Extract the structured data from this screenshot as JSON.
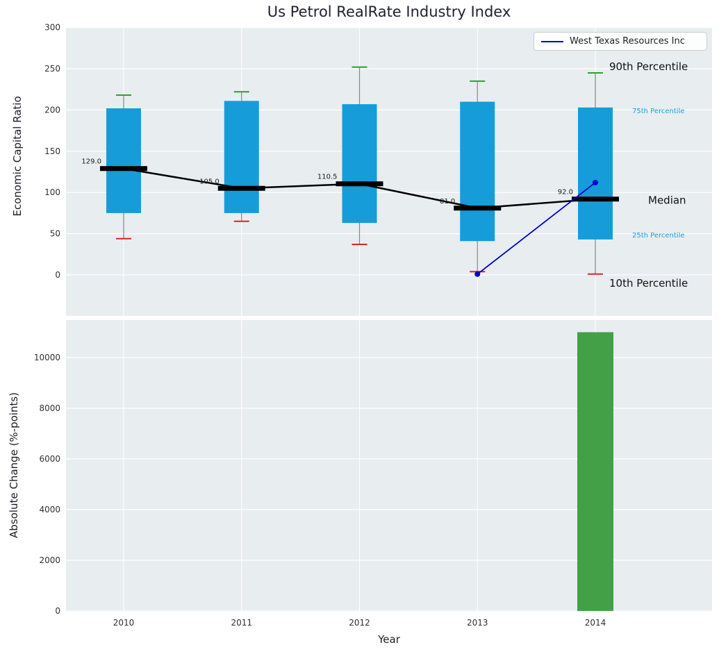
{
  "title": "Us Petrol RealRate Industry Index",
  "legend": {
    "label": "West Texas Resources Inc"
  },
  "colors": {
    "panel_bg": "#e8edf0",
    "grid": "#ffffff",
    "box_fill": "#169cd8",
    "whisker": "#888888",
    "cap_high": "#2ca02c",
    "cap_low": "#e02020",
    "median": "#000000",
    "median_trend": "#000000",
    "company_line": "#0000cc",
    "bar": "#43a047",
    "annotation_small": "#1a9ed8",
    "annotation_large": "#111111",
    "tick_text": "#303030",
    "median_label_text": "#1a1a1a"
  },
  "chart_data": [
    {
      "type": "boxplot+line",
      "title": "Us Petrol RealRate Industry Index",
      "xlabel": "Year",
      "ylabel": "Economic Capital Ratio",
      "categories": [
        "2010",
        "2011",
        "2012",
        "2013",
        "2014"
      ],
      "yticks": [
        0,
        50,
        100,
        150,
        200,
        250,
        300
      ],
      "ylim": [
        -50,
        300
      ],
      "grid": true,
      "legend_position": "upper right",
      "boxes": [
        {
          "year": "2010",
          "p10": 44,
          "p25": 75,
          "median": 129.0,
          "p75": 202,
          "p90": 218
        },
        {
          "year": "2011",
          "p10": 65,
          "p25": 75,
          "median": 105.0,
          "p75": 211,
          "p90": 222
        },
        {
          "year": "2012",
          "p10": 37,
          "p25": 63,
          "median": 110.5,
          "p75": 207,
          "p90": 252
        },
        {
          "year": "2013",
          "p10": 4,
          "p25": 41,
          "median": 81.0,
          "p75": 210,
          "p90": 235
        },
        {
          "year": "2014",
          "p10": 1,
          "p25": 43,
          "median": 92.0,
          "p75": 203,
          "p90": 245
        }
      ],
      "median_labels": [
        "129.0",
        "105.0",
        "110.5",
        "81.0",
        "92.0"
      ],
      "company_series": {
        "name": "West Texas Resources Inc",
        "x": [
          "2013",
          "2014"
        ],
        "values": [
          1.0,
          112.0
        ]
      },
      "percentile_annotations": [
        {
          "key": "p90",
          "label": "90th Percentile",
          "size": "large"
        },
        {
          "key": "p75",
          "label": "75th Percentile",
          "size": "small"
        },
        {
          "key": "median",
          "label": "Median",
          "size": "large"
        },
        {
          "key": "p25",
          "label": "25th Percentile",
          "size": "small"
        },
        {
          "key": "p10",
          "label": "10th Percentile",
          "size": "large"
        }
      ]
    },
    {
      "type": "bar",
      "xlabel": "Year",
      "ylabel": "Absolute Change (%-points)",
      "categories": [
        "2010",
        "2011",
        "2012",
        "2013",
        "2014"
      ],
      "values": [
        null,
        null,
        null,
        null,
        11000
      ],
      "yticks": [
        0,
        2000,
        4000,
        6000,
        8000,
        10000
      ],
      "ylim": [
        0,
        11500
      ],
      "grid": true
    }
  ]
}
